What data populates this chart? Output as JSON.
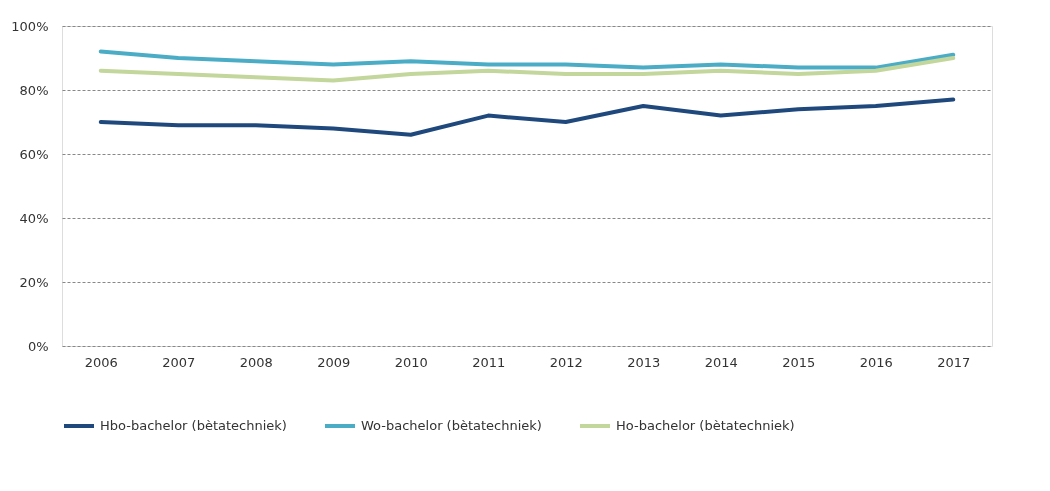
{
  "chart_data": {
    "type": "line",
    "categories": [
      "2006",
      "2007",
      "2008",
      "2009",
      "2010",
      "2011",
      "2012",
      "2013",
      "2014",
      "2015",
      "2016",
      "2017"
    ],
    "series": [
      {
        "name": "Hbo-bachelor (bètatechniek)",
        "color": "#1f497d",
        "values": [
          70,
          69,
          69,
          68,
          66,
          72,
          70,
          75,
          72,
          74,
          75,
          77
        ]
      },
      {
        "name": "Wo-bachelor (bètatechniek)",
        "color": "#4bacc6",
        "values": [
          92,
          90,
          89,
          88,
          89,
          88,
          88,
          87,
          88,
          87,
          87,
          91
        ]
      },
      {
        "name": "Ho-bachelor (bètatechniek)",
        "color": "#c3d69b",
        "values": [
          86,
          85,
          84,
          83,
          85,
          86,
          85,
          85,
          86,
          85,
          86,
          90
        ]
      }
    ],
    "ylim": [
      0,
      100
    ],
    "yticks": [
      {
        "value": 0,
        "label": "0%"
      },
      {
        "value": 20,
        "label": "20%"
      },
      {
        "value": 40,
        "label": "40%"
      },
      {
        "value": 60,
        "label": "60%"
      },
      {
        "value": 80,
        "label": "80%"
      },
      {
        "value": 100,
        "label": "100%"
      }
    ],
    "grid": "y",
    "legend": "bottom",
    "marker": "none",
    "line_style": "solid"
  }
}
